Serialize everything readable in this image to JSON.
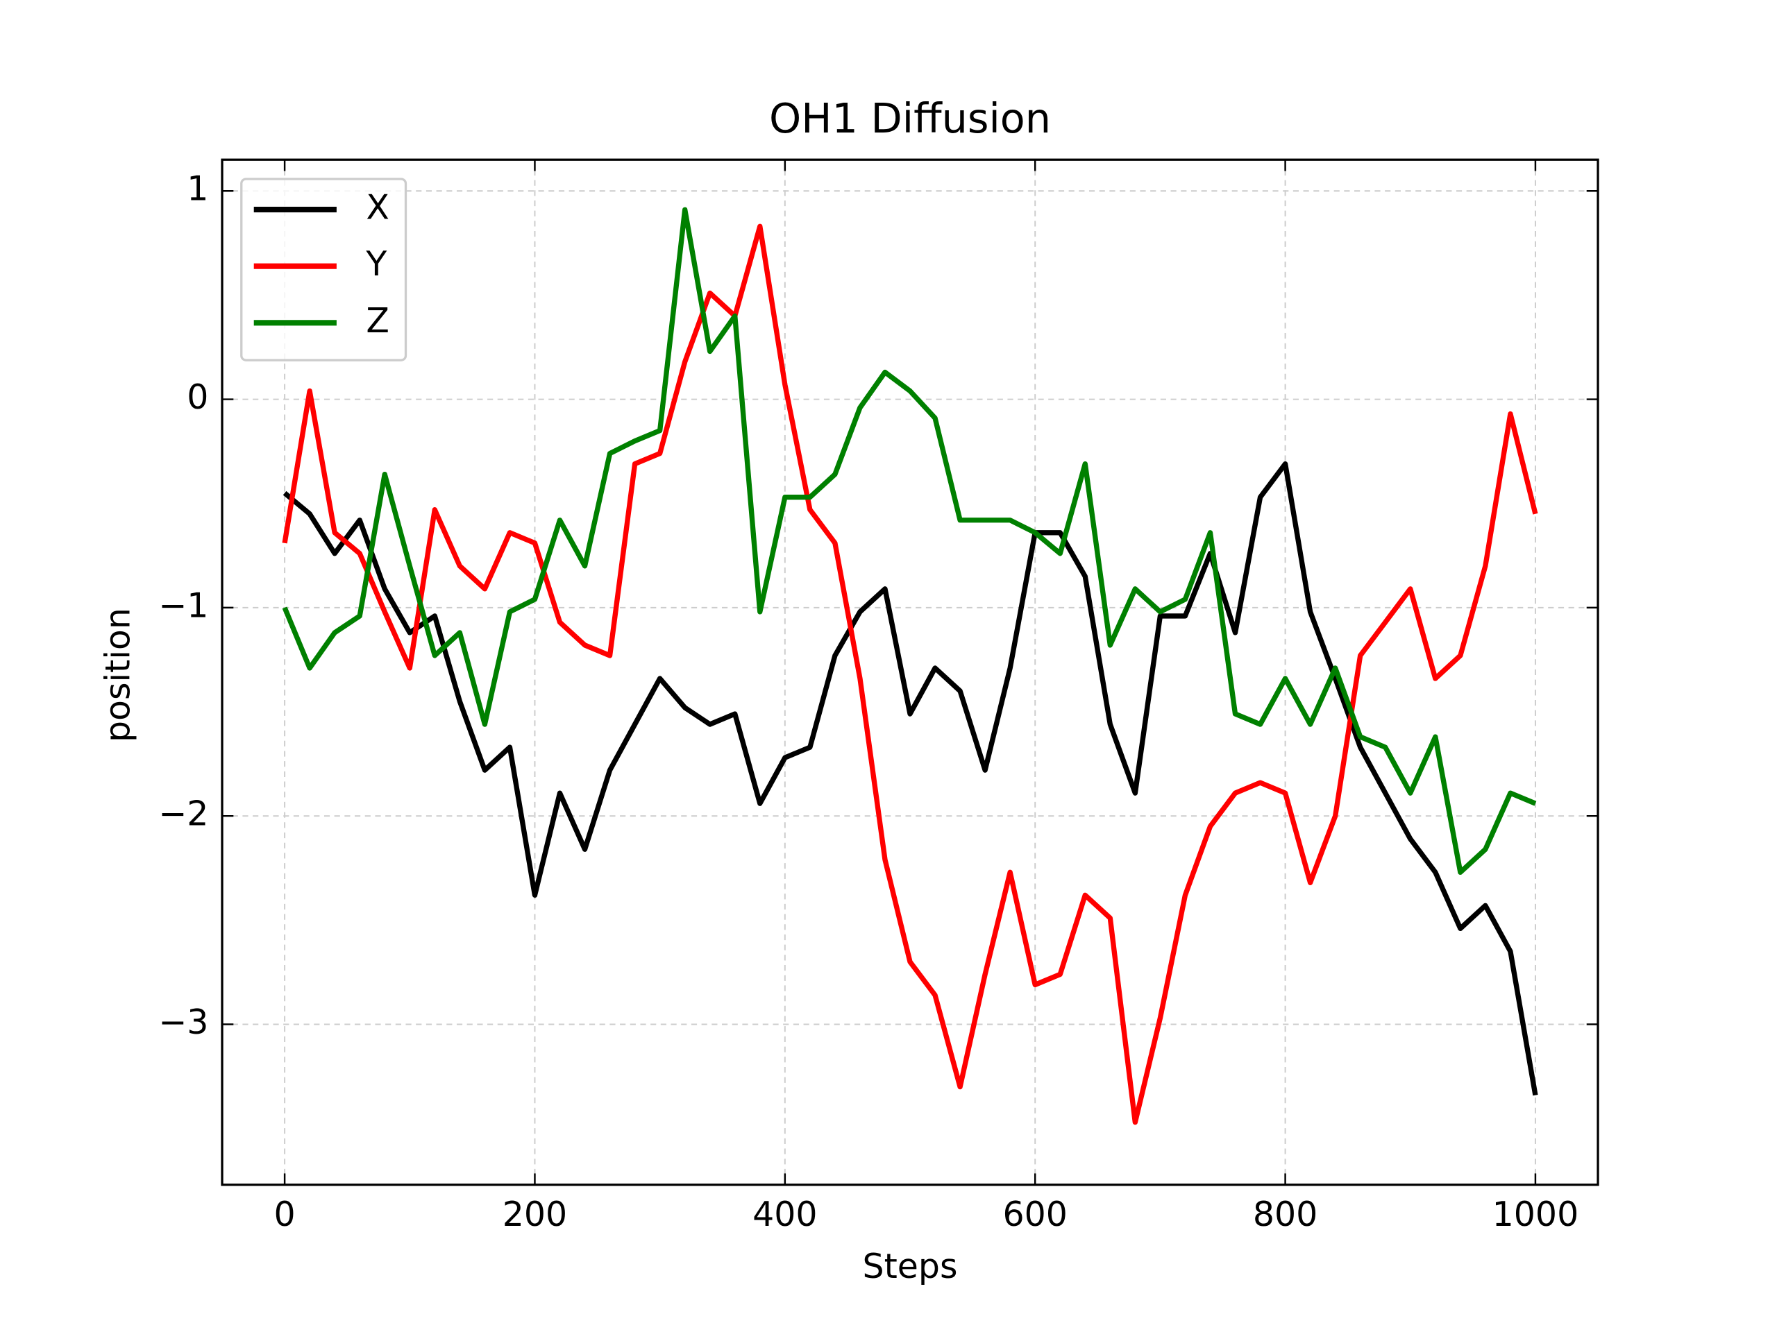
{
  "chart_data": {
    "type": "line",
    "title": "OH1 Diffusion",
    "xlabel": "Steps",
    "ylabel": "position",
    "x": [
      0,
      20,
      40,
      60,
      80,
      100,
      120,
      140,
      160,
      180,
      200,
      220,
      240,
      260,
      280,
      300,
      320,
      340,
      360,
      380,
      400,
      420,
      440,
      460,
      480,
      500,
      520,
      540,
      560,
      580,
      600,
      620,
      640,
      660,
      680,
      700,
      720,
      740,
      760,
      780,
      800,
      820,
      840,
      860,
      880,
      900,
      920,
      940,
      960,
      980,
      1000
    ],
    "series": [
      {
        "name": "X",
        "color": "#000000",
        "values": [
          -0.45,
          -0.55,
          -0.74,
          -0.58,
          -0.91,
          -1.12,
          -1.04,
          -1.45,
          -1.78,
          -1.67,
          -2.38,
          -1.89,
          -2.16,
          -1.78,
          -1.56,
          -1.34,
          -1.48,
          -1.56,
          -1.51,
          -1.94,
          -1.72,
          -1.67,
          -1.23,
          -1.02,
          -0.91,
          -1.51,
          -1.29,
          -1.4,
          -1.78,
          -1.29,
          -0.64,
          -0.64,
          -0.85,
          -1.56,
          -1.89,
          -1.04,
          -1.04,
          -0.74,
          -1.12,
          -0.47,
          -0.31,
          -1.02,
          -1.34,
          -1.67,
          -1.89,
          -2.11,
          -2.27,
          -2.54,
          -2.43,
          -2.65,
          -3.34
        ]
      },
      {
        "name": "Y",
        "color": "#ff0000",
        "values": [
          -0.69,
          0.04,
          -0.64,
          -0.74,
          -1.02,
          -1.29,
          -0.53,
          -0.8,
          -0.91,
          -0.64,
          -0.69,
          -1.07,
          -1.18,
          -1.23,
          -0.31,
          -0.26,
          0.18,
          0.51,
          0.4,
          0.83,
          0.07,
          -0.53,
          -0.69,
          -1.34,
          -2.21,
          -2.7,
          -2.86,
          -3.3,
          -2.76,
          -2.27,
          -2.81,
          -2.76,
          -2.38,
          -2.49,
          -3.47,
          -2.97,
          -2.38,
          -2.05,
          -1.89,
          -1.84,
          -1.89,
          -2.32,
          -2.0,
          -1.23,
          -1.07,
          -0.91,
          -1.34,
          -1.23,
          -0.8,
          -0.07,
          -0.55
        ]
      },
      {
        "name": "Z",
        "color": "#008000",
        "values": [
          -1.0,
          -1.29,
          -1.12,
          -1.04,
          -0.36,
          -0.8,
          -1.23,
          -1.12,
          -1.56,
          -1.02,
          -0.96,
          -0.58,
          -0.8,
          -0.26,
          -0.2,
          -0.15,
          0.91,
          0.23,
          0.4,
          -1.02,
          -0.47,
          -0.47,
          -0.36,
          -0.04,
          0.13,
          0.04,
          -0.09,
          -0.58,
          -0.58,
          -0.58,
          -0.64,
          -0.74,
          -0.31,
          -1.18,
          -0.91,
          -1.02,
          -0.96,
          -0.64,
          -1.51,
          -1.56,
          -1.34,
          -1.56,
          -1.29,
          -1.62,
          -1.67,
          -1.89,
          -1.62,
          -2.27,
          -2.16,
          -1.89,
          -1.94
        ]
      }
    ],
    "xlim": [
      -50,
      1050
    ],
    "ylim": [
      -3.77,
      1.15
    ],
    "xticks": [
      0,
      200,
      400,
      600,
      800,
      1000
    ],
    "yticks": [
      {
        "value": -3,
        "label": "−3"
      },
      {
        "value": -2,
        "label": "−2"
      },
      {
        "value": -1,
        "label": "−1"
      },
      0,
      1
    ],
    "grid": true,
    "legend": "upper left"
  }
}
